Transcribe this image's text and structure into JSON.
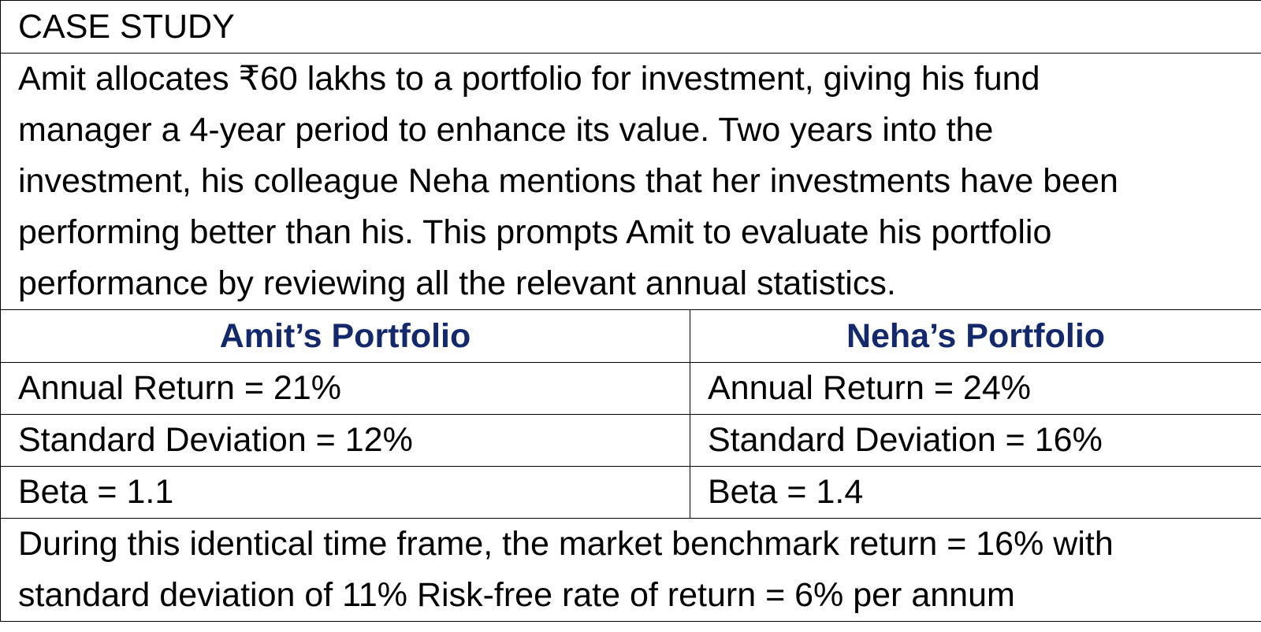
{
  "heading": "CASE STUDY",
  "paragraph": [
    "Amit allocates ₹60 lakhs to a portfolio for investment, giving his fund",
    "manager a 4-year period to enhance its value. Two years into the",
    "investment, his colleague Neha mentions that her investments have been",
    "performing better than his. This prompts Amit to evaluate his portfolio",
    "performance by reviewing all the relevant annual statistics."
  ],
  "portfolios": {
    "amit": {
      "title": "Amit’s Portfolio",
      "annual_return": "Annual Return = 21%",
      "std_dev": "Standard Deviation = 12%",
      "beta": "Beta = 1.1"
    },
    "neha": {
      "title": "Neha’s Portfolio",
      "annual_return": "Annual Return = 24%",
      "std_dev": "Standard Deviation = 16%",
      "beta": "Beta = 1.4"
    }
  },
  "footer": [
    "During this identical time frame, the market benchmark return = 16% with",
    "standard deviation of 11% Risk-free rate of return = 6% per annum"
  ],
  "colors": {
    "column_heading": "#14296b",
    "border": "#000000"
  }
}
